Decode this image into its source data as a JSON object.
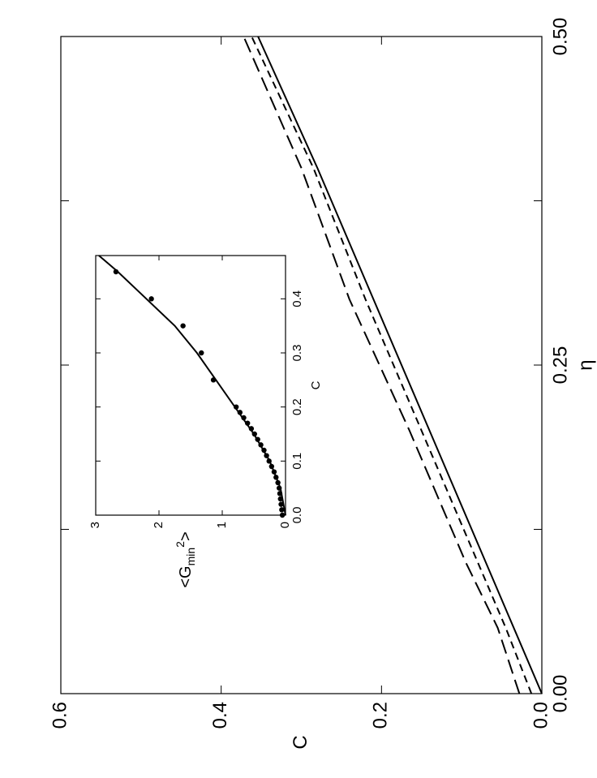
{
  "chart_data": [
    {
      "type": "line",
      "xlabel": "η",
      "ylabel": "C",
      "xlim": [
        0,
        0.5
      ],
      "ylim": [
        0,
        0.6
      ],
      "xticks": [
        {
          "value": 0,
          "label": "0.00"
        },
        {
          "value": 0.25,
          "label": "0.25"
        },
        {
          "value": 0.5,
          "label": "0.50"
        }
      ],
      "xminor": [
        0.125,
        0.375
      ],
      "yticks": [
        {
          "value": 0,
          "label": "0.0"
        },
        {
          "value": 0.2,
          "label": "0.2"
        },
        {
          "value": 0.4,
          "label": "0.4"
        },
        {
          "value": 0.6,
          "label": "0.6"
        }
      ],
      "series": [
        {
          "style": "solid",
          "color": "#000000",
          "x": [
            0,
            0.1,
            0.2,
            0.3,
            0.4,
            0.5
          ],
          "values": [
            0,
            0.07,
            0.14,
            0.21,
            0.28,
            0.354
          ]
        },
        {
          "style": "short-dash",
          "color": "#000000",
          "x": [
            0,
            0.05,
            0.1,
            0.2,
            0.3,
            0.4,
            0.5
          ],
          "values": [
            0.013,
            0.045,
            0.08,
            0.15,
            0.22,
            0.285,
            0.362
          ]
        },
        {
          "style": "long-dash",
          "color": "#000000",
          "x": [
            0,
            0.05,
            0.1,
            0.2,
            0.3,
            0.4,
            0.5
          ],
          "values": [
            0.028,
            0.055,
            0.095,
            0.165,
            0.24,
            0.3,
            0.372
          ]
        }
      ]
    },
    {
      "type": "line",
      "xlabel": "C",
      "ylabel": [
        "<G",
        "min",
        "2",
        ">"
      ],
      "xlim": [
        0,
        0.48
      ],
      "ylim": [
        0,
        3
      ],
      "xticks": [
        {
          "value": 0,
          "label": "0.0"
        },
        {
          "value": 0.1,
          "label": "0.1"
        },
        {
          "value": 0.2,
          "label": "0.2"
        },
        {
          "value": 0.3,
          "label": "0.3"
        },
        {
          "value": 0.4,
          "label": "0.4"
        }
      ],
      "yticks": [
        0,
        1,
        2,
        3
      ],
      "series": [
        {
          "style": "solid",
          "color": "#000000",
          "x": [
            0,
            0.05,
            0.1,
            0.15,
            0.2,
            0.25,
            0.3,
            0.35,
            0.4,
            0.45,
            0.48
          ],
          "values": [
            0,
            0.08,
            0.25,
            0.5,
            0.8,
            1.1,
            1.4,
            1.75,
            2.2,
            2.65,
            2.95
          ]
        },
        {
          "style": "dots",
          "color": "#000000",
          "x": [
            0,
            0.01,
            0.02,
            0.03,
            0.04,
            0.05,
            0.06,
            0.07,
            0.08,
            0.09,
            0.1,
            0.11,
            0.12,
            0.13,
            0.14,
            0.15,
            0.16,
            0.17,
            0.18,
            0.19,
            0.2,
            0.25,
            0.3,
            0.35,
            0.4,
            0.45
          ],
          "values": [
            0.05,
            0.06,
            0.07,
            0.08,
            0.09,
            0.1,
            0.12,
            0.15,
            0.18,
            0.22,
            0.26,
            0.3,
            0.34,
            0.39,
            0.44,
            0.49,
            0.54,
            0.6,
            0.66,
            0.72,
            0.78,
            1.14,
            1.33,
            1.62,
            2.12,
            2.68
          ]
        }
      ]
    }
  ]
}
